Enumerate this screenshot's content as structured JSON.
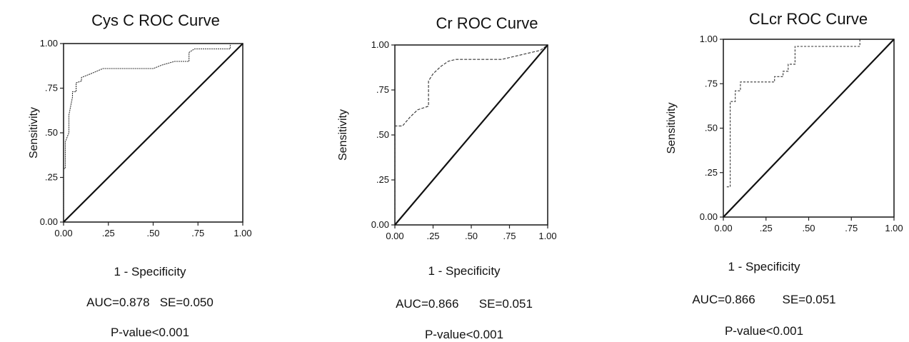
{
  "chart_data": [
    {
      "type": "line",
      "title": "Cys C  ROC Curve",
      "xlabel": "1 - Specificity",
      "ylabel": "Sensitivity",
      "xlim": [
        0,
        1
      ],
      "ylim": [
        0,
        1
      ],
      "xticks": [
        "0.00",
        ".25",
        ".50",
        ".75",
        "1.00"
      ],
      "yticks": [
        "0.00",
        ".25",
        ".50",
        ".75",
        "1.00"
      ],
      "auc_label": "AUC=0.878   SE=0.050",
      "p_label": "P-value<0.001",
      "series": [
        {
          "x": [
            0,
            0,
            0.01,
            0.01,
            0.03,
            0.03,
            0.05,
            0.05,
            0.07,
            0.07,
            0.1,
            0.1,
            0.15,
            0.22,
            0.3,
            0.4,
            0.5,
            0.55,
            0.62,
            0.7,
            0.7,
            0.73,
            0.93,
            0.93,
            1.0
          ],
          "y": [
            0,
            0.3,
            0.3,
            0.45,
            0.5,
            0.6,
            0.7,
            0.73,
            0.73,
            0.78,
            0.79,
            0.81,
            0.83,
            0.86,
            0.86,
            0.86,
            0.86,
            0.88,
            0.9,
            0.9,
            0.95,
            0.97,
            0.97,
            1.0,
            1.0
          ]
        },
        {
          "x": [
            0,
            1
          ],
          "y": [
            0,
            1
          ]
        }
      ]
    },
    {
      "type": "line",
      "title": "Cr ROC Curve",
      "xlabel": "1 - Specificity",
      "ylabel": "Sensitivity",
      "xlim": [
        0,
        1
      ],
      "ylim": [
        0,
        1
      ],
      "xticks": [
        "0.00",
        ".25",
        ".50",
        ".75",
        "1.00"
      ],
      "yticks": [
        "0.00",
        ".25",
        ".50",
        ".75",
        "1.00"
      ],
      "auc_label": "AUC=0.866      SE=0.051",
      "p_label": "P-value<0.001",
      "series": [
        {
          "x": [
            0,
            0,
            0.05,
            0.1,
            0.15,
            0.22,
            0.22,
            0.25,
            0.3,
            0.35,
            0.4,
            0.5,
            0.6,
            0.7,
            0.75,
            0.85,
            0.95,
            1.0
          ],
          "y": [
            0,
            0.55,
            0.55,
            0.6,
            0.64,
            0.66,
            0.8,
            0.84,
            0.88,
            0.91,
            0.92,
            0.92,
            0.92,
            0.92,
            0.93,
            0.95,
            0.97,
            1.0
          ]
        },
        {
          "x": [
            0,
            1
          ],
          "y": [
            0,
            1
          ]
        }
      ]
    },
    {
      "type": "line",
      "title": "CLcr  ROC  Curve",
      "xlabel": "1 - Specificity",
      "ylabel": "Sensitivity",
      "xlim": [
        0,
        1
      ],
      "ylim": [
        0,
        1
      ],
      "xticks": [
        "0.00",
        ".25",
        ".50",
        ".75",
        "1.00"
      ],
      "yticks": [
        "0.00",
        ".25",
        ".50",
        ".75",
        "1.00"
      ],
      "auc_label": "AUC=0.866        SE=0.051",
      "p_label": "P-value<0.001",
      "series": [
        {
          "x": [
            0.02,
            0.02,
            0.04,
            0.04,
            0.07,
            0.07,
            0.1,
            0.1,
            0.2,
            0.3,
            0.3,
            0.35,
            0.35,
            0.38,
            0.38,
            0.42,
            0.42,
            0.8,
            0.8
          ],
          "y": [
            0.17,
            0.17,
            0.17,
            0.65,
            0.65,
            0.71,
            0.71,
            0.76,
            0.76,
            0.76,
            0.79,
            0.79,
            0.82,
            0.82,
            0.86,
            0.86,
            0.96,
            0.96,
            1.0
          ]
        },
        {
          "x": [
            0,
            1
          ],
          "y": [
            0,
            1
          ]
        }
      ]
    }
  ]
}
